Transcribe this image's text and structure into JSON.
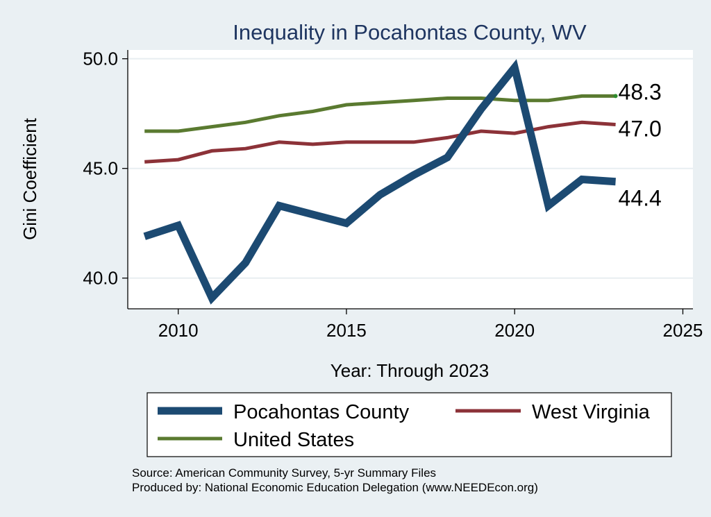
{
  "chart_data": {
    "type": "line",
    "title": "Inequality in Pocahontas County, WV",
    "xlabel": "Year: Through 2023",
    "ylabel": "Gini Coefficient",
    "xlim": [
      2008.5,
      2025.3
    ],
    "ylim": [
      38.6,
      50.4
    ],
    "x_ticks": [
      2010,
      2015,
      2020,
      2025
    ],
    "x_tick_labels": [
      "2010",
      "2015",
      "2020",
      "2025"
    ],
    "y_ticks": [
      40,
      45,
      50
    ],
    "y_tick_labels": [
      "40.0",
      "45.0",
      "50.0"
    ],
    "grid": true,
    "legend_position": "bottom",
    "x": [
      2009,
      2010,
      2011,
      2012,
      2013,
      2014,
      2015,
      2016,
      2017,
      2018,
      2019,
      2020,
      2021,
      2022,
      2023
    ],
    "series": [
      {
        "name": "Pocahontas County",
        "color": "#1c4a72",
        "values": [
          41.9,
          42.4,
          39.1,
          40.7,
          43.3,
          42.9,
          42.5,
          43.8,
          44.7,
          45.5,
          47.7,
          49.6,
          43.3,
          44.5,
          44.4
        ],
        "end_label": "44.4"
      },
      {
        "name": "West Virginia",
        "color": "#8c3238",
        "values": [
          45.3,
          45.4,
          45.8,
          45.9,
          46.2,
          46.1,
          46.2,
          46.2,
          46.2,
          46.4,
          46.7,
          46.6,
          46.9,
          47.1,
          47.0
        ],
        "end_label": "47.0"
      },
      {
        "name": "United States",
        "color": "#5a7a30",
        "values": [
          46.7,
          46.7,
          46.9,
          47.1,
          47.4,
          47.6,
          47.9,
          48.0,
          48.1,
          48.2,
          48.2,
          48.1,
          48.1,
          48.3,
          48.3
        ],
        "end_label": "48.3"
      }
    ]
  },
  "source_lines": [
    "Source: American Community Survey, 5-yr Summary Files",
    "Produced by: National Economic Education Delegation (www.NEEDEcon.org)"
  ]
}
